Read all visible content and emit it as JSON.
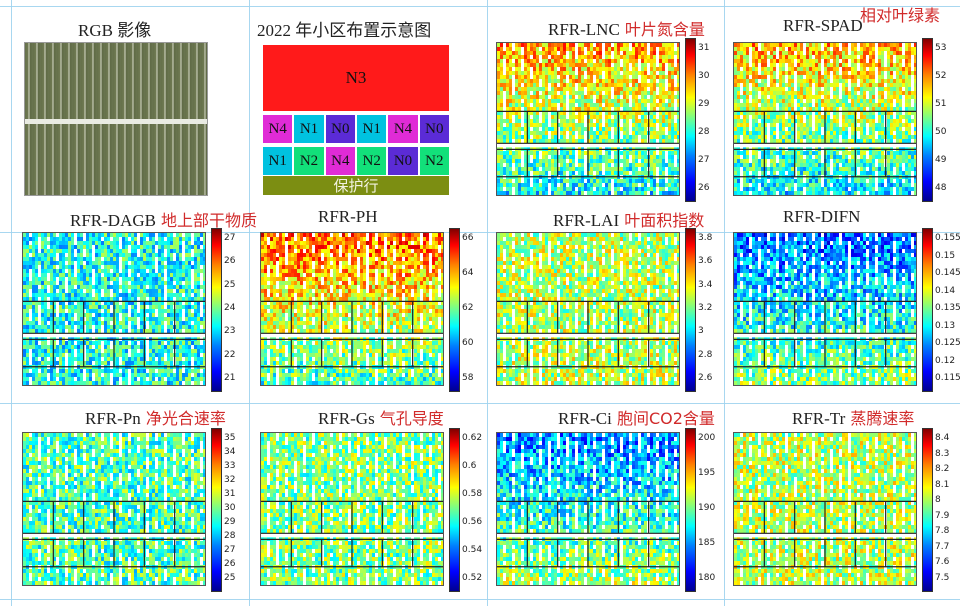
{
  "header": {
    "rgb_title": "RGB 影像",
    "layout_title": "2022 年小区布置示意图",
    "corner_note": "相对叶绿素"
  },
  "layout": {
    "top": "N3",
    "row1": [
      "N4",
      "N1",
      "N0",
      "N1",
      "N4",
      "N0"
    ],
    "row2": [
      "N1",
      "N2",
      "N4",
      "N2",
      "N0",
      "N2"
    ],
    "bottom": "保护行",
    "colors": {
      "N0": "#5b2bd6",
      "N1": "#00c2e0",
      "N2": "#12e07a",
      "N3": "#ff1a1a",
      "N4": "#e02bd6",
      "guard": "#7c8e12"
    }
  },
  "panels": [
    {
      "id": "lnc",
      "title": "RFR-LNC",
      "note": "叶片氮含量",
      "ticks": [
        "31",
        "30",
        "29",
        "28",
        "27",
        "26"
      ],
      "hot": 0.72
    },
    {
      "id": "spad",
      "title": "RFR-SPAD",
      "note": "",
      "ticks": [
        "53",
        "52",
        "51",
        "50",
        "49",
        "48"
      ],
      "hot": 0.7
    },
    {
      "id": "dagb",
      "title": "RFR-DAGB",
      "note": "地上部干物质",
      "ticks": [
        "27",
        "26",
        "25",
        "24",
        "23",
        "22",
        "21"
      ],
      "hot": 0.4
    },
    {
      "id": "ph",
      "title": "RFR-PH",
      "note": "",
      "ticks": [
        "66",
        "64",
        "62",
        "60",
        "58"
      ],
      "hot": 0.78
    },
    {
      "id": "lai",
      "title": "RFR-LAI",
      "note": "叶面积指数",
      "ticks": [
        "3.8",
        "3.6",
        "3.4",
        "3.2",
        "3",
        "2.8",
        "2.6"
      ],
      "hot": 0.55
    },
    {
      "id": "difn",
      "title": "RFR-DIFN",
      "note": "",
      "ticks": [
        "0.155",
        "0.15",
        "0.145",
        "0.14",
        "0.135",
        "0.13",
        "0.125",
        "0.12",
        "0.115"
      ],
      "hot": 0.22
    },
    {
      "id": "pn",
      "title": "RFR-Pn",
      "note": "净光合速率",
      "ticks": [
        "35",
        "34",
        "33",
        "32",
        "31",
        "30",
        "29",
        "28",
        "27",
        "26",
        "25"
      ],
      "hot": 0.45
    },
    {
      "id": "gs",
      "title": "RFR-Gs",
      "note": "气孔导度",
      "ticks": [
        "0.62",
        "0.6",
        "0.58",
        "0.56",
        "0.54",
        "0.52"
      ],
      "hot": 0.5
    },
    {
      "id": "ci",
      "title": "RFR-Ci",
      "note": "胞间CO2含量",
      "ticks": [
        "200",
        "195",
        "190",
        "185",
        "180"
      ],
      "hot": 0.25
    },
    {
      "id": "tr",
      "title": "RFR-Tr",
      "note": "蒸腾速率",
      "ticks": [
        "8.4",
        "8.3",
        "8.2",
        "8.1",
        "8",
        "7.9",
        "7.8",
        "7.7",
        "7.6",
        "7.5"
      ],
      "hot": 0.55
    }
  ]
}
